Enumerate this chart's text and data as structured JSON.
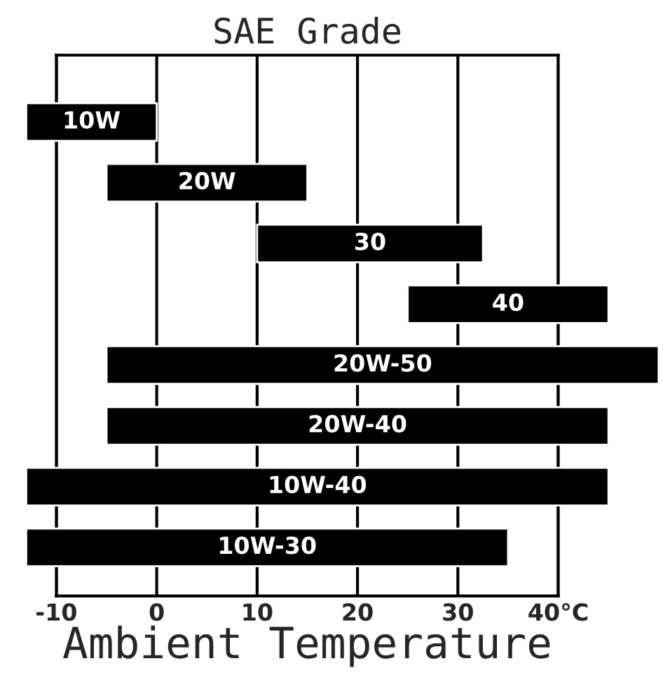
{
  "chart_data": {
    "type": "bar",
    "orientation": "horizontal",
    "title": "SAE Grade",
    "xlabel": "Ambient Temperature",
    "categories": [
      "10W",
      "20W",
      "30",
      "40",
      "20W-50",
      "20W-40",
      "10W-40",
      "10W-30"
    ],
    "base": [
      -13,
      -5,
      10,
      25,
      -5,
      -5,
      -13,
      -13
    ],
    "values": [
      13,
      20,
      22.5,
      20,
      55,
      50,
      58,
      48
    ],
    "color": "#000000",
    "xlim": [
      -10,
      40
    ],
    "xticks": [
      -10,
      0,
      10,
      20,
      30,
      {
        "value": 40,
        "label": "40°C"
      }
    ],
    "grid": "x",
    "tick_labels": "x"
  }
}
